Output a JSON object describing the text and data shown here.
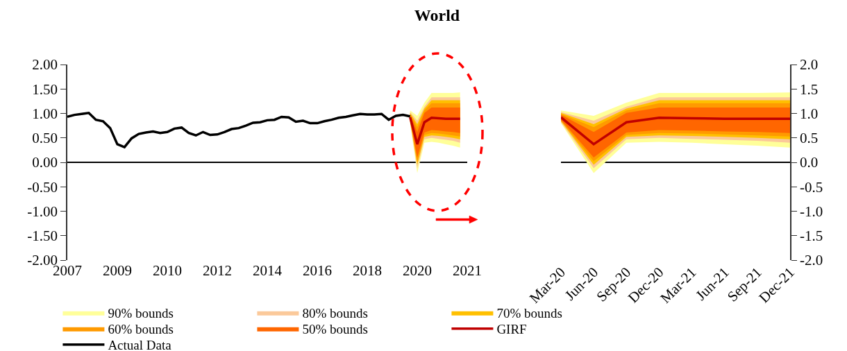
{
  "chart_data": [
    {
      "type": "line",
      "title": "World",
      "categories": [
        "2007",
        null,
        null,
        null,
        null,
        null,
        null,
        "2009",
        null,
        null,
        null,
        null,
        null,
        null,
        "2010",
        null,
        null,
        null,
        null,
        null,
        null,
        "2012",
        null,
        null,
        null,
        null,
        null,
        null,
        "2014",
        null,
        null,
        null,
        null,
        null,
        null,
        "2016",
        null,
        null,
        null,
        null,
        null,
        null,
        "2018",
        null,
        null,
        null,
        null,
        null,
        null,
        "2020",
        null,
        null,
        null,
        null,
        null,
        null,
        "2021"
      ],
      "ylim": [
        -2,
        2
      ],
      "yticks": [
        {
          "value": 2,
          "label": "2.00"
        },
        {
          "value": 1.5,
          "label": "1.50"
        },
        {
          "value": 1,
          "label": "1.00"
        },
        {
          "value": 0.5,
          "label": "0.50"
        },
        {
          "value": 0,
          "label": "0.00"
        },
        {
          "value": -0.5,
          "label": "-0.50"
        },
        {
          "value": -1,
          "label": "-1.00"
        },
        {
          "value": -1.5,
          "label": "-1.50"
        },
        {
          "value": -2,
          "label": "-2.00"
        }
      ],
      "legend": "bottom",
      "series": [
        {
          "name": "90% bounds",
          "color": "#ffff99",
          "values": [
            null,
            null,
            null,
            null,
            null,
            null,
            null,
            null,
            null,
            null,
            null,
            null,
            null,
            null,
            null,
            null,
            null,
            null,
            null,
            null,
            null,
            null,
            null,
            null,
            null,
            null,
            null,
            null,
            null,
            null,
            null,
            null,
            null,
            null,
            null,
            null,
            null,
            null,
            null,
            null,
            null,
            null,
            null,
            null,
            null,
            null,
            null,
            null,
            null,
            null,
            null,
            null,
            null,
            null,
            null,
            null,
            null
          ],
          "upper": [
            null,
            null,
            null,
            null,
            null,
            null,
            null,
            null,
            null,
            null,
            null,
            null,
            null,
            null,
            null,
            null,
            null,
            null,
            null,
            null,
            null,
            null,
            null,
            null,
            null,
            null,
            null,
            null,
            null,
            null,
            null,
            null,
            null,
            null,
            null,
            null,
            null,
            null,
            null,
            null,
            null,
            null,
            null,
            null,
            null,
            null,
            null,
            null,
            1.06,
            0.95,
            1.22,
            1.42,
            1.42,
            1.42,
            1.42,
            1.43,
            null
          ],
          "lower": [
            null,
            null,
            null,
            null,
            null,
            null,
            null,
            null,
            null,
            null,
            null,
            null,
            null,
            null,
            null,
            null,
            null,
            null,
            null,
            null,
            null,
            null,
            null,
            null,
            null,
            null,
            null,
            null,
            null,
            null,
            null,
            null,
            null,
            null,
            null,
            null,
            null,
            null,
            null,
            null,
            null,
            null,
            null,
            null,
            null,
            null,
            null,
            null,
            0.8,
            -0.22,
            0.4,
            0.42,
            0.4,
            0.37,
            0.34,
            0.3,
            null
          ]
        },
        {
          "name": "80% bounds",
          "color": "#fbc99a",
          "values": [
            null,
            null,
            null,
            null,
            null,
            null,
            null,
            null,
            null,
            null,
            null,
            null,
            null,
            null,
            null,
            null,
            null,
            null,
            null,
            null,
            null,
            null,
            null,
            null,
            null,
            null,
            null,
            null,
            null,
            null,
            null,
            null,
            null,
            null,
            null,
            null,
            null,
            null,
            null,
            null,
            null,
            null,
            null,
            null,
            null,
            null,
            null,
            null,
            null,
            null,
            null,
            null,
            null,
            null,
            null,
            null,
            null
          ],
          "upper": [
            null,
            null,
            null,
            null,
            null,
            null,
            null,
            null,
            null,
            null,
            null,
            null,
            null,
            null,
            null,
            null,
            null,
            null,
            null,
            null,
            null,
            null,
            null,
            null,
            null,
            null,
            null,
            null,
            null,
            null,
            null,
            null,
            null,
            null,
            null,
            null,
            null,
            null,
            null,
            null,
            null,
            null,
            null,
            null,
            null,
            null,
            null,
            null,
            1.03,
            0.85,
            1.14,
            1.33,
            1.33,
            1.33,
            1.33,
            1.33,
            null
          ],
          "lower": [
            null,
            null,
            null,
            null,
            null,
            null,
            null,
            null,
            null,
            null,
            null,
            null,
            null,
            null,
            null,
            null,
            null,
            null,
            null,
            null,
            null,
            null,
            null,
            null,
            null,
            null,
            null,
            null,
            null,
            null,
            null,
            null,
            null,
            null,
            null,
            null,
            null,
            null,
            null,
            null,
            null,
            null,
            null,
            null,
            null,
            null,
            null,
            null,
            0.82,
            -0.12,
            0.47,
            0.5,
            0.48,
            0.46,
            0.44,
            0.4,
            null
          ]
        },
        {
          "name": "70% bounds",
          "color": "#ffc000",
          "values": [
            null,
            null,
            null,
            null,
            null,
            null,
            null,
            null,
            null,
            null,
            null,
            null,
            null,
            null,
            null,
            null,
            null,
            null,
            null,
            null,
            null,
            null,
            null,
            null,
            null,
            null,
            null,
            null,
            null,
            null,
            null,
            null,
            null,
            null,
            null,
            null,
            null,
            null,
            null,
            null,
            null,
            null,
            null,
            null,
            null,
            null,
            null,
            null,
            null,
            null,
            null,
            null,
            null,
            null,
            null,
            null,
            null
          ],
          "upper": [
            null,
            null,
            null,
            null,
            null,
            null,
            null,
            null,
            null,
            null,
            null,
            null,
            null,
            null,
            null,
            null,
            null,
            null,
            null,
            null,
            null,
            null,
            null,
            null,
            null,
            null,
            null,
            null,
            null,
            null,
            null,
            null,
            null,
            null,
            null,
            null,
            null,
            null,
            null,
            null,
            null,
            null,
            null,
            null,
            null,
            null,
            null,
            null,
            1.01,
            0.78,
            1.1,
            1.27,
            1.27,
            1.27,
            1.27,
            1.27,
            null
          ],
          "lower": [
            null,
            null,
            null,
            null,
            null,
            null,
            null,
            null,
            null,
            null,
            null,
            null,
            null,
            null,
            null,
            null,
            null,
            null,
            null,
            null,
            null,
            null,
            null,
            null,
            null,
            null,
            null,
            null,
            null,
            null,
            null,
            null,
            null,
            null,
            null,
            null,
            null,
            null,
            null,
            null,
            null,
            null,
            null,
            null,
            null,
            null,
            null,
            null,
            0.84,
            -0.05,
            0.52,
            0.55,
            0.54,
            0.52,
            0.5,
            0.47,
            null
          ]
        },
        {
          "name": "60% bounds",
          "color": "#ff9a00",
          "values": [
            null,
            null,
            null,
            null,
            null,
            null,
            null,
            null,
            null,
            null,
            null,
            null,
            null,
            null,
            null,
            null,
            null,
            null,
            null,
            null,
            null,
            null,
            null,
            null,
            null,
            null,
            null,
            null,
            null,
            null,
            null,
            null,
            null,
            null,
            null,
            null,
            null,
            null,
            null,
            null,
            null,
            null,
            null,
            null,
            null,
            null,
            null,
            null,
            null,
            null,
            null,
            null,
            null,
            null,
            null,
            null,
            null
          ],
          "upper": [
            null,
            null,
            null,
            null,
            null,
            null,
            null,
            null,
            null,
            null,
            null,
            null,
            null,
            null,
            null,
            null,
            null,
            null,
            null,
            null,
            null,
            null,
            null,
            null,
            null,
            null,
            null,
            null,
            null,
            null,
            null,
            null,
            null,
            null,
            null,
            null,
            null,
            null,
            null,
            null,
            null,
            null,
            null,
            null,
            null,
            null,
            null,
            null,
            0.99,
            0.72,
            1.06,
            1.21,
            1.21,
            1.21,
            1.21,
            1.21,
            null
          ],
          "lower": [
            null,
            null,
            null,
            null,
            null,
            null,
            null,
            null,
            null,
            null,
            null,
            null,
            null,
            null,
            null,
            null,
            null,
            null,
            null,
            null,
            null,
            null,
            null,
            null,
            null,
            null,
            null,
            null,
            null,
            null,
            null,
            null,
            null,
            null,
            null,
            null,
            null,
            null,
            null,
            null,
            null,
            null,
            null,
            null,
            null,
            null,
            null,
            null,
            0.85,
            0.02,
            0.56,
            0.6,
            0.59,
            0.57,
            0.55,
            0.53,
            null
          ]
        },
        {
          "name": "50% bounds",
          "color": "#ff6600",
          "values": [
            null,
            null,
            null,
            null,
            null,
            null,
            null,
            null,
            null,
            null,
            null,
            null,
            null,
            null,
            null,
            null,
            null,
            null,
            null,
            null,
            null,
            null,
            null,
            null,
            null,
            null,
            null,
            null,
            null,
            null,
            null,
            null,
            null,
            null,
            null,
            null,
            null,
            null,
            null,
            null,
            null,
            null,
            null,
            null,
            null,
            null,
            null,
            null,
            null,
            null,
            null,
            null,
            null,
            null,
            null,
            null,
            null
          ],
          "upper": [
            null,
            null,
            null,
            null,
            null,
            null,
            null,
            null,
            null,
            null,
            null,
            null,
            null,
            null,
            null,
            null,
            null,
            null,
            null,
            null,
            null,
            null,
            null,
            null,
            null,
            null,
            null,
            null,
            null,
            null,
            null,
            null,
            null,
            null,
            null,
            null,
            null,
            null,
            null,
            null,
            null,
            null,
            null,
            null,
            null,
            null,
            null,
            null,
            0.97,
            0.62,
            1.01,
            1.12,
            1.12,
            1.12,
            1.12,
            1.12,
            null
          ],
          "lower": [
            null,
            null,
            null,
            null,
            null,
            null,
            null,
            null,
            null,
            null,
            null,
            null,
            null,
            null,
            null,
            null,
            null,
            null,
            null,
            null,
            null,
            null,
            null,
            null,
            null,
            null,
            null,
            null,
            null,
            null,
            null,
            null,
            null,
            null,
            null,
            null,
            null,
            null,
            null,
            null,
            null,
            null,
            null,
            null,
            null,
            null,
            null,
            null,
            0.87,
            0.1,
            0.61,
            0.66,
            0.65,
            0.63,
            0.62,
            0.6,
            null
          ]
        },
        {
          "name": "GIRF",
          "color": "#c00000",
          "values": [
            null,
            null,
            null,
            null,
            null,
            null,
            null,
            null,
            null,
            null,
            null,
            null,
            null,
            null,
            null,
            null,
            null,
            null,
            null,
            null,
            null,
            null,
            null,
            null,
            null,
            null,
            null,
            null,
            null,
            null,
            null,
            null,
            null,
            null,
            null,
            null,
            null,
            null,
            null,
            null,
            null,
            null,
            null,
            null,
            null,
            null,
            null,
            null,
            0.92,
            0.37,
            0.82,
            0.91,
            0.9,
            0.89,
            0.89,
            0.89,
            null
          ]
        },
        {
          "name": "Actual Data",
          "color": "#000000",
          "values": [
            0.93,
            0.97,
            0.99,
            1.01,
            0.87,
            0.84,
            0.7,
            0.37,
            0.31,
            0.49,
            0.58,
            0.61,
            0.63,
            0.6,
            0.62,
            0.69,
            0.71,
            0.6,
            0.55,
            0.62,
            0.56,
            0.57,
            0.62,
            0.68,
            0.7,
            0.75,
            0.81,
            0.82,
            0.86,
            0.87,
            0.93,
            0.92,
            0.83,
            0.85,
            0.8,
            0.8,
            0.84,
            0.87,
            0.91,
            0.93,
            0.96,
            0.99,
            0.98,
            0.98,
            0.99,
            0.87,
            0.95,
            0.97,
            0.94,
            null,
            null,
            null,
            null,
            null,
            null,
            null,
            null
          ]
        }
      ]
    },
    {
      "type": "line",
      "categories": [
        "Mar-20",
        "Jun-20",
        "Sep-20",
        "Dec-20",
        "Mar-21",
        "Jun-21",
        "Sep-21",
        "Dec-21"
      ],
      "ylim": [
        -2,
        2
      ],
      "yticks": [
        {
          "value": 2,
          "label": "2.0"
        },
        {
          "value": 1.5,
          "label": "1.5"
        },
        {
          "value": 1,
          "label": "1.0"
        },
        {
          "value": 0.5,
          "label": "0.5"
        },
        {
          "value": 0,
          "label": "0.0"
        },
        {
          "value": -0.5,
          "label": "-0.5"
        },
        {
          "value": -1,
          "label": "-1.0"
        },
        {
          "value": -1.5,
          "label": "-1.5"
        },
        {
          "value": -2,
          "label": "-2.0"
        }
      ],
      "series": [
        {
          "color": "#ffff99",
          "values": [
            null,
            null,
            null,
            null,
            null,
            null,
            null,
            null
          ],
          "upper": [
            1.06,
            0.95,
            1.22,
            1.42,
            1.42,
            1.42,
            1.42,
            1.43
          ],
          "lower": [
            0.8,
            -0.22,
            0.4,
            0.42,
            0.4,
            0.37,
            0.34,
            0.3
          ]
        },
        {
          "color": "#fbc99a",
          "values": [
            null,
            null,
            null,
            null,
            null,
            null,
            null,
            null
          ],
          "upper": [
            1.03,
            0.85,
            1.14,
            1.33,
            1.33,
            1.33,
            1.33,
            1.33
          ],
          "lower": [
            0.82,
            -0.12,
            0.47,
            0.5,
            0.48,
            0.46,
            0.44,
            0.4
          ]
        },
        {
          "color": "#ffc000",
          "values": [
            null,
            null,
            null,
            null,
            null,
            null,
            null,
            null
          ],
          "upper": [
            1.01,
            0.78,
            1.1,
            1.27,
            1.27,
            1.27,
            1.27,
            1.27
          ],
          "lower": [
            0.84,
            -0.05,
            0.52,
            0.55,
            0.54,
            0.52,
            0.5,
            0.47
          ]
        },
        {
          "color": "#ff9a00",
          "values": [
            null,
            null,
            null,
            null,
            null,
            null,
            null,
            null
          ],
          "upper": [
            0.99,
            0.72,
            1.06,
            1.21,
            1.21,
            1.21,
            1.21,
            1.21
          ],
          "lower": [
            0.85,
            0.02,
            0.56,
            0.6,
            0.59,
            0.57,
            0.55,
            0.53
          ]
        },
        {
          "color": "#ff6600",
          "values": [
            null,
            null,
            null,
            null,
            null,
            null,
            null,
            null
          ],
          "upper": [
            0.97,
            0.62,
            1.01,
            1.12,
            1.12,
            1.12,
            1.12,
            1.12
          ],
          "lower": [
            0.87,
            0.1,
            0.61,
            0.66,
            0.65,
            0.63,
            0.62,
            0.6
          ]
        },
        {
          "color": "#c00000",
          "values": [
            0.92,
            0.37,
            0.82,
            0.91,
            0.9,
            0.89,
            0.89,
            0.89
          ]
        }
      ]
    }
  ]
}
